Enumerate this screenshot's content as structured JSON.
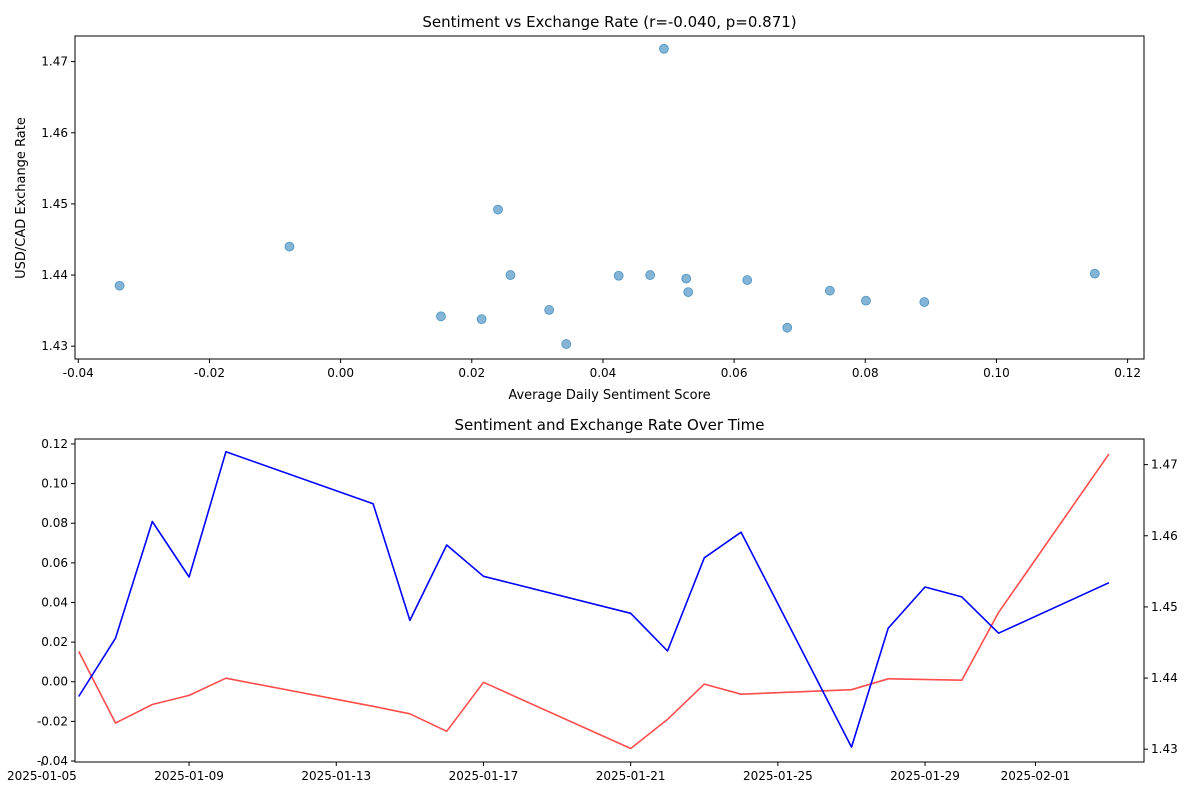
{
  "chart_data": [
    {
      "type": "scatter",
      "title": "Sentiment vs Exchange Rate (r=-0.040, p=0.871)",
      "xlabel": "Average Daily Sentiment Score",
      "ylabel": "USD/CAD Exchange Rate",
      "xlim": [
        -0.0405,
        0.1225
      ],
      "ylim": [
        1.4282,
        1.4736
      ],
      "xticks": [
        "-0.04",
        "-0.02",
        "0.00",
        "0.02",
        "0.04",
        "0.06",
        "0.08",
        "0.10",
        "0.12"
      ],
      "yticks": [
        "1.43",
        "1.44",
        "1.45",
        "1.46",
        "1.47"
      ],
      "color": "#1f77b4",
      "points": [
        {
          "x": -0.0337,
          "y": 1.4385
        },
        {
          "x": -0.0078,
          "y": 1.444
        },
        {
          "x": 0.0153,
          "y": 1.4342
        },
        {
          "x": 0.0215,
          "y": 1.4338
        },
        {
          "x": 0.024,
          "y": 1.4492
        },
        {
          "x": 0.0259,
          "y": 1.44
        },
        {
          "x": 0.0318,
          "y": 1.4351
        },
        {
          "x": 0.0344,
          "y": 1.4303
        },
        {
          "x": 0.0424,
          "y": 1.4399
        },
        {
          "x": 0.0472,
          "y": 1.44
        },
        {
          "x": 0.0493,
          "y": 1.4718
        },
        {
          "x": 0.0527,
          "y": 1.4395
        },
        {
          "x": 0.053,
          "y": 1.4376
        },
        {
          "x": 0.062,
          "y": 1.4393
        },
        {
          "x": 0.0681,
          "y": 1.4326
        },
        {
          "x": 0.0746,
          "y": 1.4378
        },
        {
          "x": 0.0801,
          "y": 1.4364
        },
        {
          "x": 0.089,
          "y": 1.4362
        },
        {
          "x": 0.115,
          "y": 1.4402
        }
      ]
    },
    {
      "type": "line",
      "title": "Sentiment and Exchange Rate Over Time",
      "xlabel": "",
      "ylabel": "",
      "xlim": [
        "2025-01-05",
        "2025-02-04"
      ],
      "xticks": [
        "2025-01-05",
        "2025-01-09",
        "2025-01-13",
        "2025-01-17",
        "2025-01-21",
        "2025-01-25",
        "2025-01-29",
        "2025-02-01"
      ],
      "ylim_left": [
        -0.0405,
        0.1225
      ],
      "ylim_right": [
        1.4282,
        1.4736
      ],
      "yticks_left": [
        "-0.04",
        "-0.02",
        "0.00",
        "0.02",
        "0.04",
        "0.06",
        "0.08",
        "0.10",
        "0.12"
      ],
      "yticks_right": [
        "1.43",
        "1.44",
        "1.45",
        "1.46",
        "1.47"
      ],
      "series": [
        {
          "axis": "left",
          "color": "#ff0000",
          "x": [
            "2025-01-06",
            "2025-01-07",
            "2025-01-08",
            "2025-01-09",
            "2025-01-10",
            "2025-01-14",
            "2025-01-15",
            "2025-01-16",
            "2025-01-17",
            "2025-01-21",
            "2025-01-22",
            "2025-01-23",
            "2025-01-24",
            "2025-01-27",
            "2025-01-28",
            "2025-01-30",
            "2025-01-31",
            "2025-02-03"
          ],
          "values": [
            0.0153,
            -0.0208,
            -0.0115,
            -0.0069,
            0.0018,
            -0.0124,
            -0.0162,
            -0.025,
            -0.0003,
            -0.0337,
            -0.019,
            -0.0012,
            -0.0063,
            -0.004,
            0.0015,
            0.0008,
            0.035,
            0.115
          ]
        },
        {
          "axis": "right",
          "color": "#0000ff",
          "x": [
            "2025-01-06",
            "2025-01-07",
            "2025-01-08",
            "2025-01-09",
            "2025-01-10",
            "2025-01-14",
            "2025-01-15",
            "2025-01-16",
            "2025-01-17",
            "2025-01-21",
            "2025-01-22",
            "2025-01-23",
            "2025-01-24",
            "2025-01-27",
            "2025-01-28",
            "2025-01-29",
            "2025-01-30",
            "2025-01-31",
            "2025-02-03"
          ],
          "values": [
            1.4374,
            1.4456,
            1.462,
            1.4542,
            1.4718,
            1.4645,
            1.4481,
            1.4587,
            1.4543,
            1.4491,
            1.4438,
            1.4569,
            1.4605,
            1.4303,
            1.447,
            1.4528,
            1.4514,
            1.4463,
            1.4534
          ]
        }
      ]
    }
  ]
}
